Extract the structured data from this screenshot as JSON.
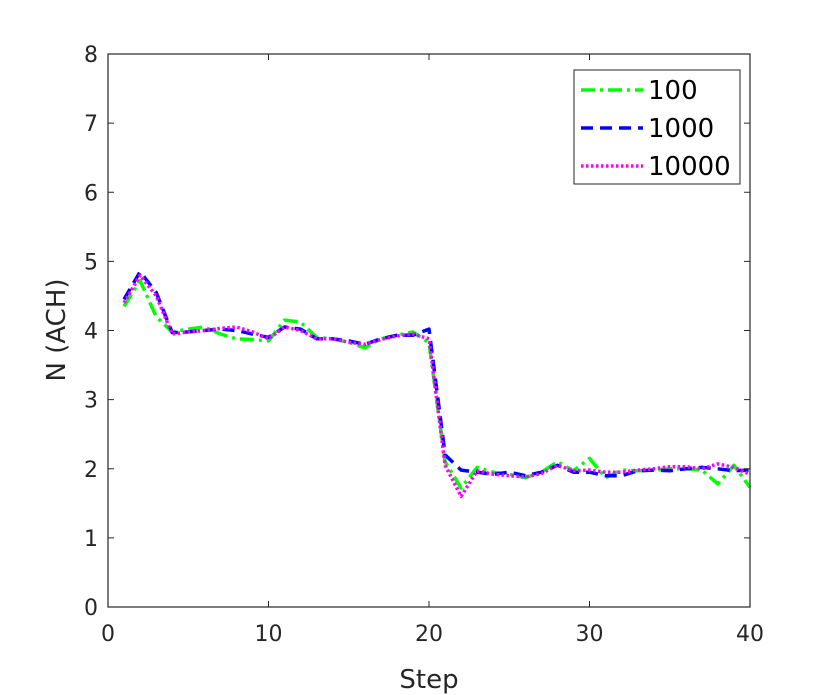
{
  "chart_data": {
    "type": "line",
    "title": "",
    "xlabel": "Step",
    "ylabel": "N (ACH)",
    "xlim": [
      0,
      40
    ],
    "ylim": [
      0,
      8
    ],
    "xticks": [
      0,
      10,
      20,
      30,
      40
    ],
    "yticks": [
      0,
      1,
      2,
      3,
      4,
      5,
      6,
      7,
      8
    ],
    "grid": false,
    "legend_position": "top-right",
    "x": [
      1,
      2,
      3,
      4,
      5,
      6,
      7,
      8,
      9,
      10,
      11,
      12,
      13,
      14,
      15,
      16,
      17,
      18,
      19,
      20,
      21,
      22,
      23,
      24,
      25,
      26,
      27,
      28,
      29,
      30,
      31,
      32,
      33,
      34,
      35,
      36,
      37,
      38,
      39,
      40
    ],
    "series": [
      {
        "name": "100",
        "color": "#00ff00",
        "dash": "dashdot",
        "values": [
          4.35,
          4.72,
          4.2,
          3.98,
          4.02,
          4.05,
          3.95,
          3.88,
          3.87,
          3.85,
          4.15,
          4.12,
          3.9,
          3.88,
          3.83,
          3.75,
          3.88,
          3.93,
          3.98,
          3.82,
          2.1,
          1.72,
          2.02,
          1.95,
          1.92,
          1.87,
          1.95,
          2.1,
          1.97,
          2.15,
          1.87,
          1.98,
          1.97,
          1.98,
          2.0,
          2.0,
          1.98,
          1.78,
          2.05,
          1.73
        ]
      },
      {
        "name": "1000",
        "color": "#0000ff",
        "dash": "dashed",
        "values": [
          4.45,
          4.85,
          4.55,
          3.97,
          3.98,
          4.0,
          4.02,
          4.0,
          3.95,
          3.9,
          4.05,
          4.02,
          3.88,
          3.88,
          3.85,
          3.8,
          3.88,
          3.93,
          3.93,
          4.02,
          2.2,
          1.98,
          1.95,
          1.92,
          1.95,
          1.9,
          1.95,
          2.05,
          1.95,
          1.95,
          1.9,
          1.9,
          1.97,
          1.98,
          1.97,
          2.0,
          2.02,
          2.0,
          1.97,
          1.98
        ]
      },
      {
        "name": "10000",
        "color": "#ff00ff",
        "dash": "dotted",
        "values": [
          4.4,
          4.8,
          4.5,
          3.95,
          3.98,
          4.0,
          4.03,
          4.05,
          3.98,
          3.88,
          4.05,
          4.0,
          3.88,
          3.88,
          3.83,
          3.8,
          3.87,
          3.92,
          3.95,
          3.88,
          2.05,
          1.6,
          1.97,
          1.92,
          1.9,
          1.88,
          1.93,
          2.05,
          1.97,
          1.98,
          1.95,
          1.95,
          1.98,
          2.0,
          2.03,
          2.03,
          2.0,
          2.07,
          2.02,
          1.92
        ]
      }
    ]
  }
}
